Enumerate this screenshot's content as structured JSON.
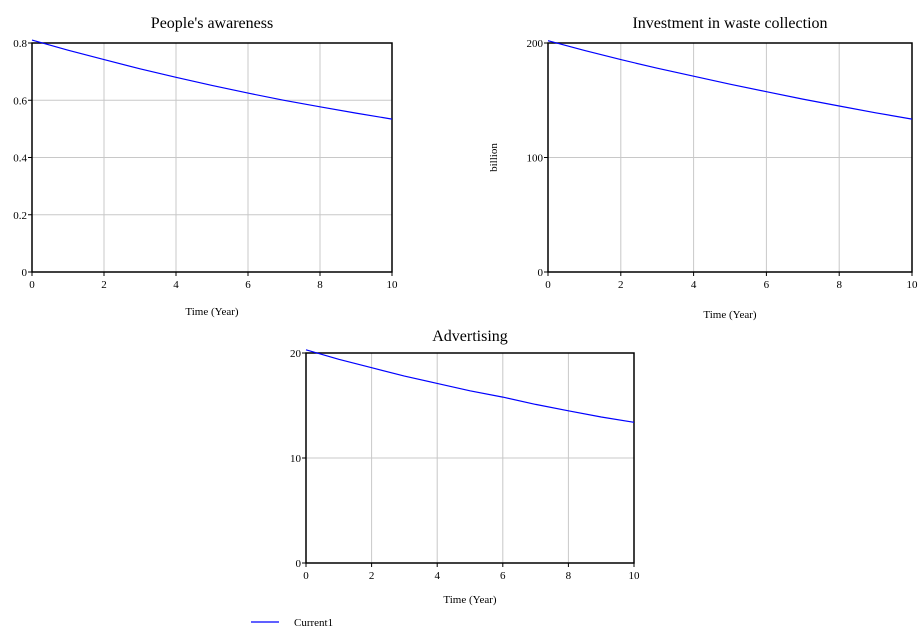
{
  "legend": {
    "entries": [
      {
        "label": "Current1",
        "color": "#0000ff"
      }
    ]
  },
  "chart_data": [
    {
      "type": "line",
      "title": "People's awareness",
      "xlabel": "Time (Year)",
      "ylabel": "",
      "xlim": [
        0,
        10
      ],
      "ylim": [
        0,
        0.8
      ],
      "xticks": [
        0,
        2,
        4,
        6,
        8,
        10
      ],
      "yticks": [
        0,
        0.2,
        0.4,
        0.6,
        0.8
      ],
      "grid": true,
      "series": [
        {
          "name": "Current1",
          "color": "#0000ff",
          "x": [
            0,
            1,
            2,
            3,
            4,
            5,
            6,
            7,
            8,
            9,
            10
          ],
          "y": [
            0.81,
            0.775,
            0.742,
            0.71,
            0.68,
            0.652,
            0.625,
            0.6,
            0.577,
            0.555,
            0.534
          ]
        }
      ]
    },
    {
      "type": "line",
      "title": "Investment in waste collection",
      "xlabel": "Time (Year)",
      "ylabel": "billion",
      "xlim": [
        0,
        10
      ],
      "ylim": [
        0,
        200
      ],
      "xticks": [
        0,
        2,
        4,
        6,
        8,
        10
      ],
      "yticks": [
        0,
        100,
        200
      ],
      "grid": true,
      "series": [
        {
          "name": "Current1",
          "color": "#0000ff",
          "x": [
            0,
            1,
            2,
            3,
            4,
            5,
            6,
            7,
            8,
            9,
            10
          ],
          "y": [
            202,
            193.5,
            185.5,
            178,
            171,
            164,
            157.5,
            151,
            145,
            139,
            133.5
          ]
        }
      ]
    },
    {
      "type": "line",
      "title": "Advertising",
      "xlabel": "Time (Year)",
      "ylabel": "",
      "xlim": [
        0,
        10
      ],
      "ylim": [
        0,
        20
      ],
      "xticks": [
        0,
        2,
        4,
        6,
        8,
        10
      ],
      "yticks": [
        0,
        10,
        20
      ],
      "grid": true,
      "series": [
        {
          "name": "Current1",
          "color": "#0000ff",
          "x": [
            0,
            1,
            2,
            3,
            4,
            5,
            6,
            7,
            8,
            9,
            10
          ],
          "y": [
            20.3,
            19.4,
            18.6,
            17.8,
            17.1,
            16.4,
            15.8,
            15.1,
            14.5,
            13.9,
            13.4
          ]
        }
      ]
    }
  ]
}
